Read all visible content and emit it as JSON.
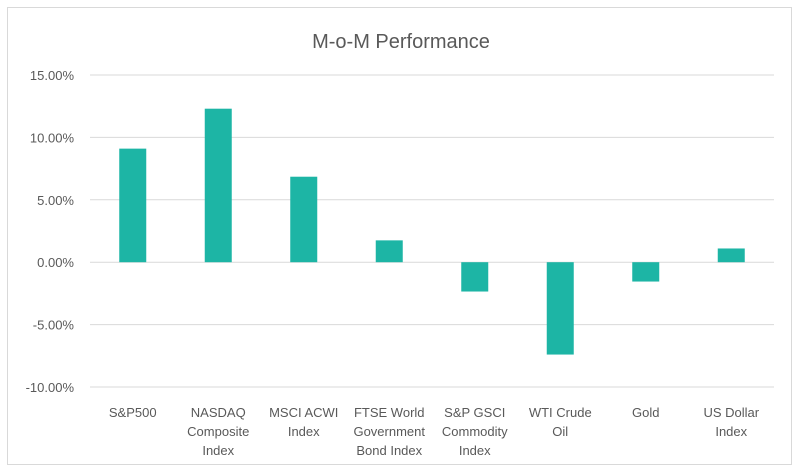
{
  "chart_data": {
    "type": "bar",
    "title": "M-o-M Performance",
    "xlabel": "",
    "ylabel": "",
    "ylim": [
      -10,
      15
    ],
    "yticks": [
      15,
      10,
      5,
      0,
      -5,
      -10
    ],
    "ytick_labels": [
      "15.00%",
      "10.00%",
      "5.00%",
      "0.00%",
      "-5.00%",
      "-10.00%"
    ],
    "grid": true,
    "legend": "none",
    "bar_color": "#1db5a5",
    "categories": [
      [
        "S&P500"
      ],
      [
        "NASDAQ",
        "Composite",
        "Index"
      ],
      [
        "MSCI ACWI",
        "Index"
      ],
      [
        "FTSE World",
        "Government",
        "Bond Index"
      ],
      [
        "S&P GSCI",
        "Commodity",
        "Index"
      ],
      [
        "WTI Crude",
        "Oil"
      ],
      [
        "Gold"
      ],
      [
        "US Dollar",
        "Index"
      ]
    ],
    "values": [
      9.1,
      12.3,
      6.85,
      1.75,
      -2.35,
      -7.4,
      -1.55,
      1.1
    ]
  }
}
